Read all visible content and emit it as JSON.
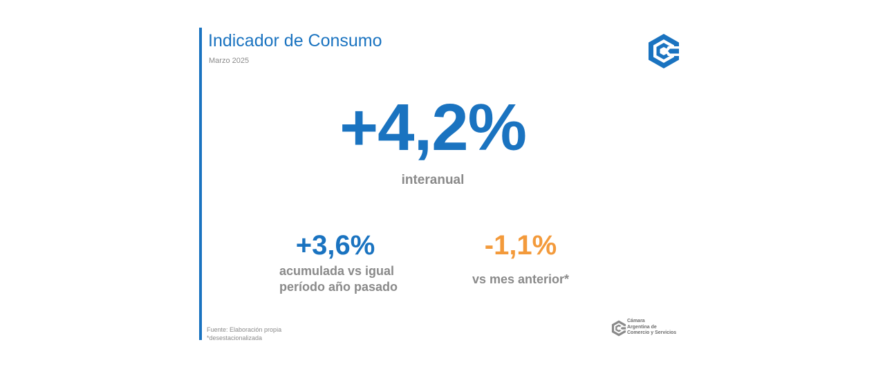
{
  "slide": {
    "title": "Indicador de Consumo",
    "subtitle": "Marzo 2025"
  },
  "main_indicator": {
    "value": "+4,2%",
    "label": "interanual"
  },
  "accumulated": {
    "value": "+3,6%",
    "label_line1": "acumulada vs igual",
    "label_line2": "período año pasado"
  },
  "monthly": {
    "value": "-1,1%",
    "label": "vs mes anterior*"
  },
  "footnotes": {
    "source": "Fuente: Elaboración propia",
    "note": "*desestacionalizada"
  },
  "organization": {
    "name_line1": "Cámara",
    "name_line2": "Argentina de",
    "name_line3": "Comercio y Servicios",
    "logo_icon": "cac-logo-icon"
  },
  "colors": {
    "primary_blue": "#1a73c0",
    "accent_orange": "#f39a3b",
    "text_gray": "#8a8a8a"
  }
}
